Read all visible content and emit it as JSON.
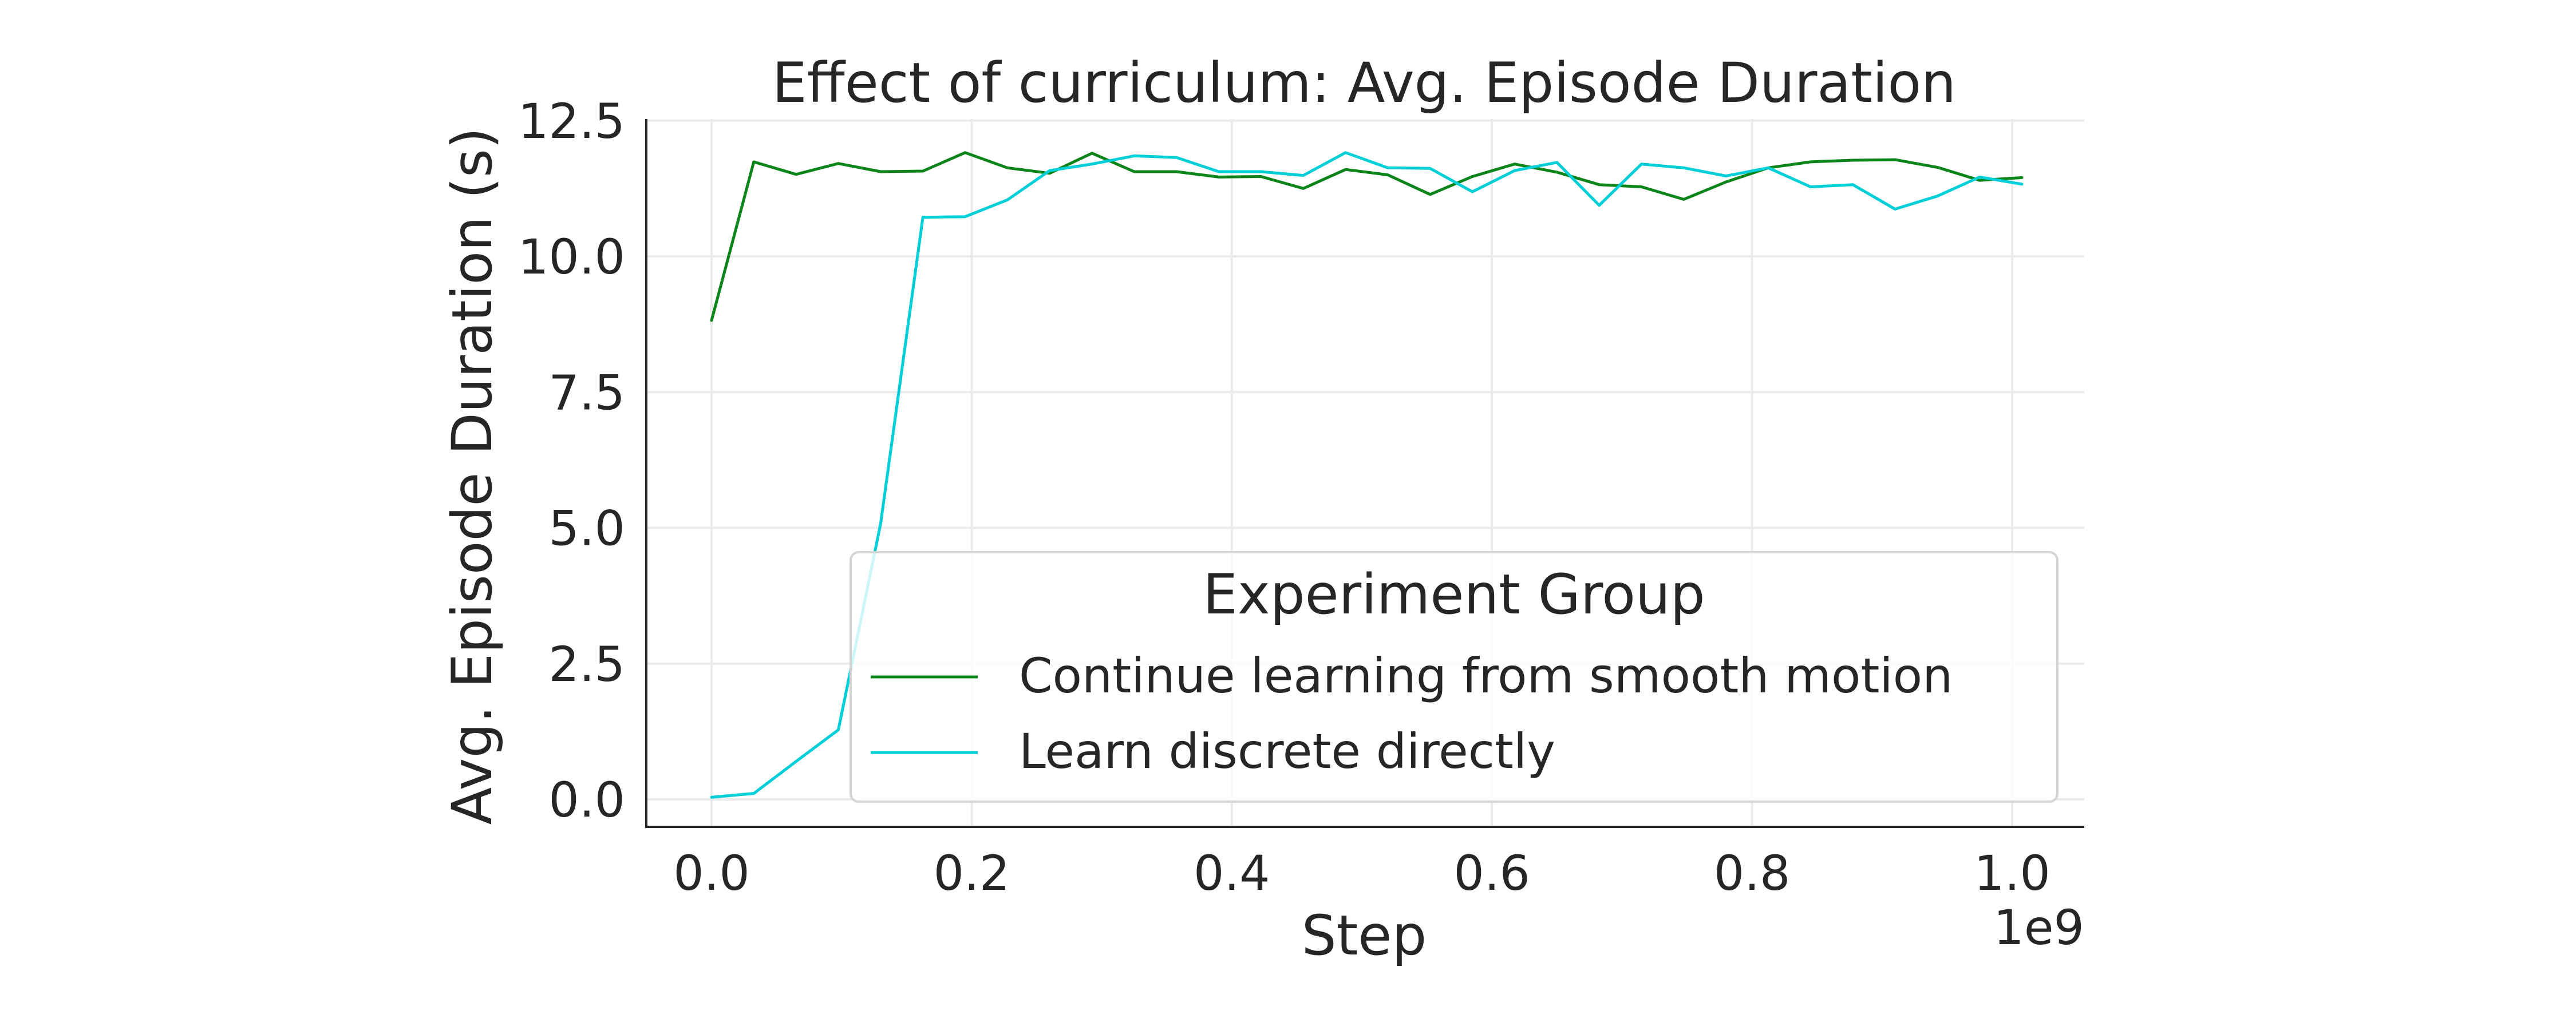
{
  "chart_data": {
    "type": "line",
    "title": "Effect of curriculum: Avg. Episode Duration",
    "xlabel": "Step",
    "ylabel": "Avg. Episode Duration (s)",
    "x_offset_label": "1e9",
    "xlim": [
      -0.06,
      1.06
    ],
    "ylim": [
      -0.5,
      12.5
    ],
    "xticks": [
      "0.0",
      "0.2",
      "0.4",
      "0.6",
      "0.8",
      "1.0"
    ],
    "yticks": [
      "0.0",
      "2.5",
      "5.0",
      "7.5",
      "10.0",
      "12.5"
    ],
    "grid": true,
    "legend": {
      "title": "Experiment Group",
      "placement": "lower-right"
    },
    "x": [
      0.0,
      0.0325,
      0.065,
      0.0975,
      0.13,
      0.1625,
      0.195,
      0.2275,
      0.26,
      0.2925,
      0.325,
      0.3575,
      0.39,
      0.4225,
      0.455,
      0.4875,
      0.52,
      0.5525,
      0.585,
      0.6175,
      0.65,
      0.6825,
      0.715,
      0.7475,
      0.78,
      0.8125,
      0.845,
      0.8775,
      0.91,
      0.9425,
      0.975,
      1.0075
    ],
    "series": [
      {
        "name": "Continue learning from smooth motion",
        "color": "#0b841a",
        "values": [
          8.82,
          11.74,
          11.51,
          11.71,
          11.56,
          11.57,
          11.91,
          11.63,
          11.53,
          11.9,
          11.56,
          11.56,
          11.46,
          11.47,
          11.25,
          11.6,
          11.5,
          11.14,
          11.47,
          11.7,
          11.55,
          11.32,
          11.28,
          11.05,
          11.37,
          11.63,
          11.74,
          11.77,
          11.78,
          11.64,
          11.4,
          11.45
        ]
      },
      {
        "name": "Learn discrete directly",
        "color": "#00cfd8",
        "values": [
          0.04,
          0.11,
          0.7,
          1.28,
          5.08,
          10.72,
          10.73,
          11.04,
          11.58,
          11.7,
          11.85,
          11.82,
          11.56,
          11.56,
          11.49,
          11.91,
          11.63,
          11.62,
          11.19,
          11.58,
          11.73,
          10.94,
          11.7,
          11.63,
          11.48,
          11.63,
          11.28,
          11.32,
          10.87,
          11.11,
          11.46,
          11.33
        ]
      }
    ]
  }
}
